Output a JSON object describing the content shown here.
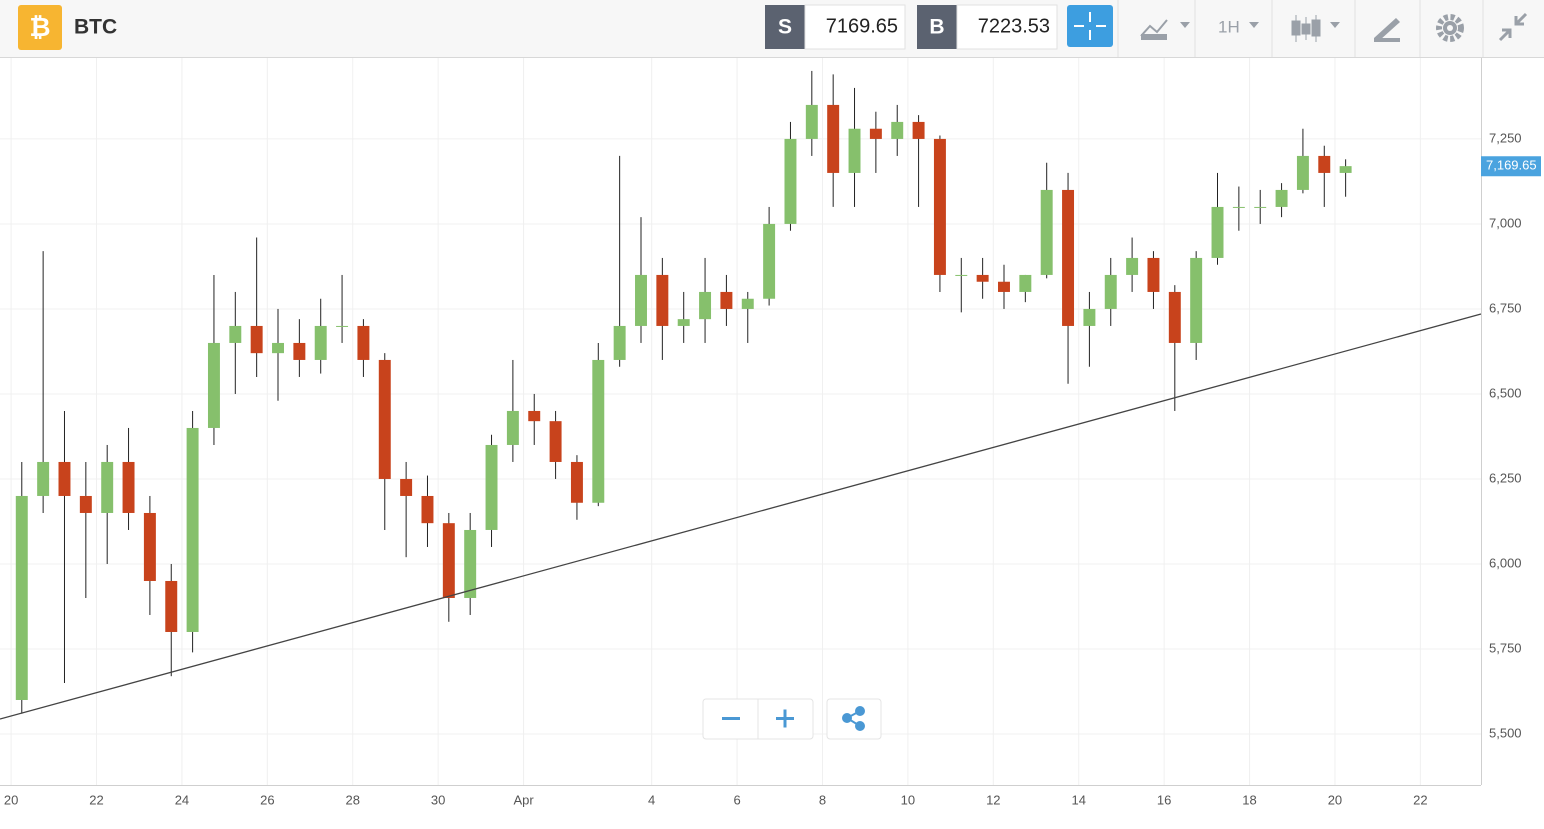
{
  "toolbar": {
    "symbol": "BTC",
    "sell": {
      "label": "S",
      "value": 7169.65
    },
    "buy": {
      "label": "B",
      "value": 7223.53
    },
    "interval": "1H"
  },
  "chart_data": {
    "type": "candlestick",
    "x": [
      0.25,
      0.75,
      1.25,
      1.75,
      2.25,
      2.75,
      3.25,
      3.75,
      4.25,
      4.75,
      5.25,
      5.75,
      6.25,
      6.75,
      7.25,
      7.75,
      8.25,
      8.75,
      9.25,
      9.75,
      10.25,
      10.75,
      11.25,
      11.75,
      12.25,
      12.75,
      13.25,
      13.75,
      14.25,
      14.75,
      15.25,
      15.75,
      16.25,
      16.75,
      17.25,
      17.75,
      18.25,
      18.75,
      19.25,
      19.75,
      20.25,
      20.75,
      21.25,
      21.75,
      22.25,
      22.75,
      23.25,
      23.75,
      24.25,
      24.75,
      25.25,
      25.75,
      26.25,
      26.75,
      27.25,
      27.75,
      28.25,
      28.75,
      29.25,
      29.75,
      30.25,
      30.75,
      31.25
    ],
    "open": [
      5600,
      6200,
      6300,
      6200,
      6150,
      6300,
      6150,
      5950,
      5800,
      6400,
      6650,
      6700,
      6620,
      6650,
      6600,
      6700,
      6700,
      6600,
      6250,
      6200,
      6120,
      5900,
      6100,
      6350,
      6450,
      6420,
      6300,
      6180,
      6600,
      6700,
      6850,
      6700,
      6720,
      6800,
      6750,
      6780,
      7000,
      7250,
      7350,
      7150,
      7280,
      7250,
      7300,
      7250,
      6850,
      6850,
      6830,
      6800,
      6850,
      7100,
      6700,
      6750,
      6850,
      6900,
      6800,
      6650,
      6900,
      7050,
      7050,
      7050,
      7100,
      7200,
      7150
    ],
    "high": [
      6300,
      6920,
      6450,
      6300,
      6350,
      6400,
      6200,
      6000,
      6450,
      6850,
      6800,
      6960,
      6750,
      6720,
      6780,
      6850,
      6720,
      6620,
      6300,
      6260,
      6150,
      6150,
      6380,
      6600,
      6500,
      6450,
      6320,
      6650,
      7200,
      7020,
      6900,
      6800,
      6900,
      6850,
      6800,
      7050,
      7300,
      7450,
      7440,
      7400,
      7330,
      7350,
      7320,
      7260,
      6900,
      6900,
      6880,
      6850,
      7180,
      7150,
      6800,
      6900,
      6960,
      6920,
      6820,
      6920,
      7150,
      7110,
      7100,
      7120,
      7280,
      7230,
      7190
    ],
    "low": [
      5560,
      6150,
      5650,
      5900,
      6000,
      6100,
      5850,
      5670,
      5740,
      6350,
      6500,
      6550,
      6480,
      6550,
      6560,
      6650,
      6550,
      6100,
      6020,
      6050,
      5830,
      5850,
      6050,
      6300,
      6350,
      6250,
      6130,
      6170,
      6580,
      6650,
      6600,
      6650,
      6650,
      6700,
      6650,
      6760,
      6980,
      7200,
      7050,
      7050,
      7150,
      7200,
      7050,
      6800,
      6740,
      6780,
      6750,
      6770,
      6840,
      6530,
      6580,
      6700,
      6800,
      6750,
      6450,
      6600,
      6880,
      6980,
      7000,
      7020,
      7090,
      7050,
      7080
    ],
    "close": [
      6200,
      6300,
      6200,
      6150,
      6300,
      6150,
      5950,
      5800,
      6400,
      6650,
      6700,
      6620,
      6650,
      6600,
      6700,
      6700,
      6600,
      6250,
      6200,
      6120,
      5900,
      6100,
      6350,
      6450,
      6420,
      6300,
      6180,
      6600,
      6700,
      6850,
      6700,
      6720,
      6800,
      6750,
      6780,
      7000,
      7250,
      7350,
      7150,
      7280,
      7250,
      7300,
      7250,
      6850,
      6850,
      6830,
      6800,
      6850,
      7100,
      6700,
      6750,
      6850,
      6900,
      6800,
      6650,
      6900,
      7050,
      7050,
      7050,
      7100,
      7200,
      7150,
      7170
    ],
    "up_color": "#86c06c",
    "down_color": "#c8431c",
    "xlim": [
      -0.26,
      34.42
    ],
    "ylim": [
      5350,
      7488
    ],
    "xticks": [
      {
        "value": 0,
        "label": "20"
      },
      {
        "value": 2,
        "label": "22"
      },
      {
        "value": 4,
        "label": "24"
      },
      {
        "value": 6,
        "label": "26"
      },
      {
        "value": 8,
        "label": "28"
      },
      {
        "value": 10,
        "label": "30"
      },
      {
        "value": 12,
        "label": "Apr"
      },
      {
        "value": 15,
        "label": "4"
      },
      {
        "value": 17,
        "label": "6"
      },
      {
        "value": 19,
        "label": "8"
      },
      {
        "value": 21,
        "label": "10"
      },
      {
        "value": 23,
        "label": "12"
      },
      {
        "value": 25,
        "label": "14"
      },
      {
        "value": 27,
        "label": "16"
      },
      {
        "value": 29,
        "label": "18"
      },
      {
        "value": 31,
        "label": "20"
      },
      {
        "value": 33,
        "label": "22"
      }
    ],
    "yticks": [
      {
        "value": 5500,
        "label": "5,500"
      },
      {
        "value": 5750,
        "label": "5,750"
      },
      {
        "value": 6000,
        "label": "6,000"
      },
      {
        "value": 6250,
        "label": "6,250"
      },
      {
        "value": 6500,
        "label": "6,500"
      },
      {
        "value": 6750,
        "label": "6,750"
      },
      {
        "value": 7000,
        "label": "7,000"
      },
      {
        "value": 7250,
        "label": "7,250"
      }
    ],
    "grid": true,
    "trendline": {
      "x": [
        -0.26,
        34.42
      ],
      "y": [
        5544,
        6735
      ]
    },
    "current_price": {
      "value": 7169.65,
      "label": "7,169.65"
    }
  }
}
